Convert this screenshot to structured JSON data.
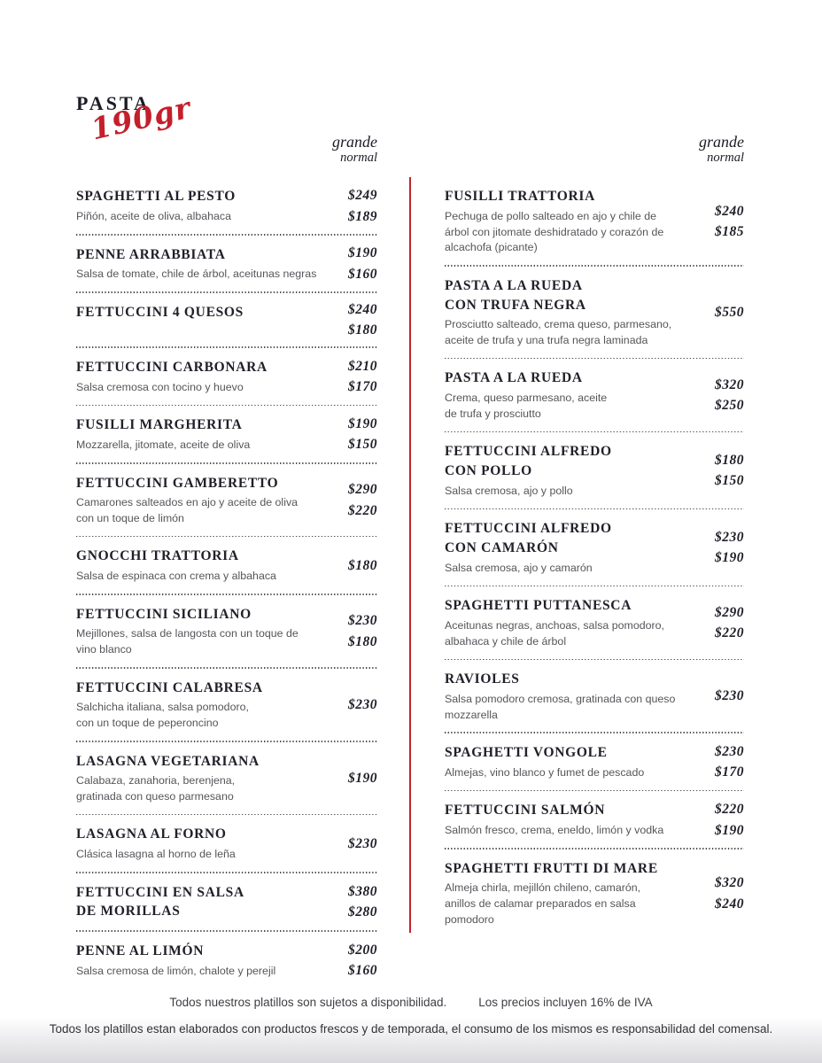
{
  "header": {
    "title": "PASTA",
    "portion": "190gr",
    "size_labels": {
      "grande": "grande",
      "normal": "normal"
    }
  },
  "colors": {
    "accent_red": "#bf232d",
    "title_ink": "#20202a",
    "description_gray": "#55565a"
  },
  "menu": {
    "left": [
      {
        "name": "SPAGHETTI AL PESTO",
        "description": "Piñón, aceite de oliva, albahaca",
        "price_grande": "$249",
        "price_normal": "$189"
      },
      {
        "name": "PENNE ARRABBIATA",
        "description": "Salsa de tomate, chile de árbol, aceitunas negras",
        "price_grande": "$190",
        "price_normal": "$160"
      },
      {
        "name": "FETTUCCINI 4 QUESOS",
        "description": "",
        "price_grande": "$240",
        "price_normal": "$180"
      },
      {
        "name": "FETTUCCINI CARBONARA",
        "description": "Salsa cremosa con tocino y huevo",
        "price_grande": "$210",
        "price_normal": "$170"
      },
      {
        "name": "FUSILLI MARGHERITA",
        "description": "Mozzarella, jitomate, aceite de oliva",
        "price_grande": "$190",
        "price_normal": "$150"
      },
      {
        "name": "FETTUCCINI GAMBERETTO",
        "description": "Camarones salteados en ajo y aceite de oliva\ncon un toque de limón",
        "price_grande": "$290",
        "price_normal": "$220"
      },
      {
        "name": "GNOCCHI TRATTORIA",
        "description": "Salsa de espinaca con crema y albahaca",
        "price_grande": "$180",
        "price_normal": ""
      },
      {
        "name": "FETTUCCINI SICILIANO",
        "description": "Mejillones, salsa de langosta con un toque de\nvino blanco",
        "price_grande": "$230",
        "price_normal": "$180"
      },
      {
        "name": "FETTUCCINI CALABRESA",
        "description": "Salchicha italiana, salsa pomodoro,\ncon un toque de peperoncino",
        "price_grande": "$230",
        "price_normal": ""
      },
      {
        "name": "LASAGNA VEGETARIANA",
        "description": "Calabaza, zanahoria, berenjena,\ngratinada con queso parmesano",
        "price_grande": "$190",
        "price_normal": ""
      },
      {
        "name": "LASAGNA AL FORNO",
        "description": "Clásica lasagna al horno de leña",
        "price_grande": "$230",
        "price_normal": ""
      },
      {
        "name": "FETTUCCINI EN SALSA\nDE MORILLAS",
        "description": "",
        "price_grande": "$380",
        "price_normal": "$280"
      },
      {
        "name": "PENNE AL LIMÓN",
        "description": "Salsa cremosa de limón, chalote y perejil",
        "price_grande": "$200",
        "price_normal": "$160"
      }
    ],
    "right": [
      {
        "name": "FUSILLI TRATTORIA",
        "description": "Pechuga de pollo salteado en ajo y chile de\nárbol con jitomate deshidratado y corazón de\nalcachofa (picante)",
        "price_grande": "$240",
        "price_normal": "$185"
      },
      {
        "name": "PASTA A LA RUEDA\nCON TRUFA NEGRA",
        "description": "Prosciutto salteado, crema queso, parmesano,\naceite de trufa y una trufa negra laminada",
        "price_grande": "$550",
        "price_normal": ""
      },
      {
        "name": "PASTA A LA RUEDA",
        "description": "Crema, queso parmesano, aceite\nde trufa y prosciutto",
        "price_grande": "$320",
        "price_normal": "$250"
      },
      {
        "name": "FETTUCCINI ALFREDO\nCON POLLO",
        "description": "Salsa cremosa, ajo y pollo",
        "price_grande": "$180",
        "price_normal": "$150"
      },
      {
        "name": "FETTUCCINI ALFREDO\nCON CAMARÓN",
        "description": "Salsa cremosa, ajo y camarón",
        "price_grande": "$230",
        "price_normal": "$190"
      },
      {
        "name": "SPAGHETTI PUTTANESCA",
        "description": "Aceitunas negras, anchoas, salsa pomodoro,\nalbahaca y chile de árbol",
        "price_grande": "$290",
        "price_normal": "$220"
      },
      {
        "name": "RAVIOLES",
        "description": "Salsa pomodoro cremosa, gratinada con queso\nmozzarella",
        "price_grande": "$230",
        "price_normal": ""
      },
      {
        "name": "SPAGHETTI VONGOLE",
        "description": "Almejas, vino blanco y fumet de pescado",
        "price_grande": "$230",
        "price_normal": "$170"
      },
      {
        "name": "FETTUCCINI SALMÓN",
        "description": "Salmón fresco, crema, eneldo, limón y vodka",
        "price_grande": "$220",
        "price_normal": "$190"
      },
      {
        "name": "SPAGHETTI FRUTTI DI MARE",
        "description": "Almeja chirla, mejillón chileno, camarón,\nanillos de calamar preparados en salsa\npomodoro",
        "price_grande": "$320",
        "price_normal": "$240"
      }
    ]
  },
  "footer": {
    "note_availability": "Todos nuestros platillos son sujetos a disponibilidad.",
    "note_tax": "Los precios incluyen 16% de IVA",
    "disclaimer": "Todos los platillos estan elaborados con productos frescos y de temporada, el consumo de los mismos es responsabilidad del comensal."
  }
}
